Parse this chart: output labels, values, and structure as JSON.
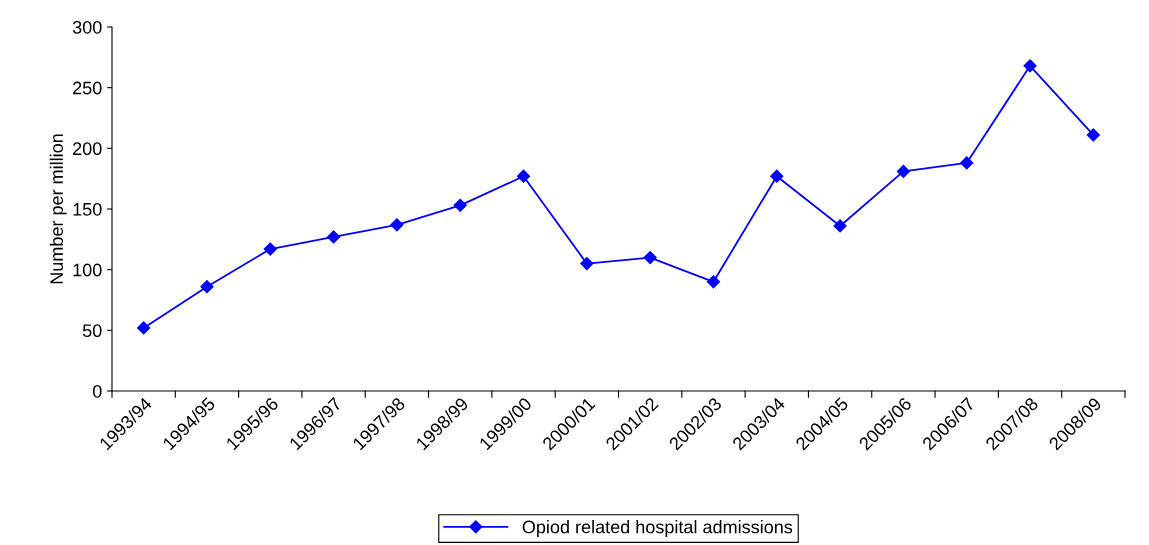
{
  "chart_data": {
    "type": "line",
    "ylabel": "Number per million",
    "categories": [
      "1993/94",
      "1994/95",
      "1995/96",
      "1996/97",
      "1997/98",
      "1998/99",
      "1999/00",
      "2000/01",
      "2001/02",
      "2002/03",
      "2003/04",
      "2004/05",
      "2005/06",
      "2006/07",
      "2007/08",
      "2008/09"
    ],
    "series": [
      {
        "name": "Opiod related hospital admissions",
        "color": "#0000ff",
        "values": [
          52,
          86,
          117,
          127,
          137,
          153,
          177,
          105,
          110,
          90,
          177,
          136,
          181,
          188,
          268,
          211
        ]
      }
    ],
    "ylim": [
      0,
      300
    ],
    "yticks": [
      0,
      50,
      100,
      150,
      200,
      250,
      300
    ],
    "grid": false,
    "legend": "bottom",
    "marker": "diamond",
    "line_style": "solid"
  }
}
